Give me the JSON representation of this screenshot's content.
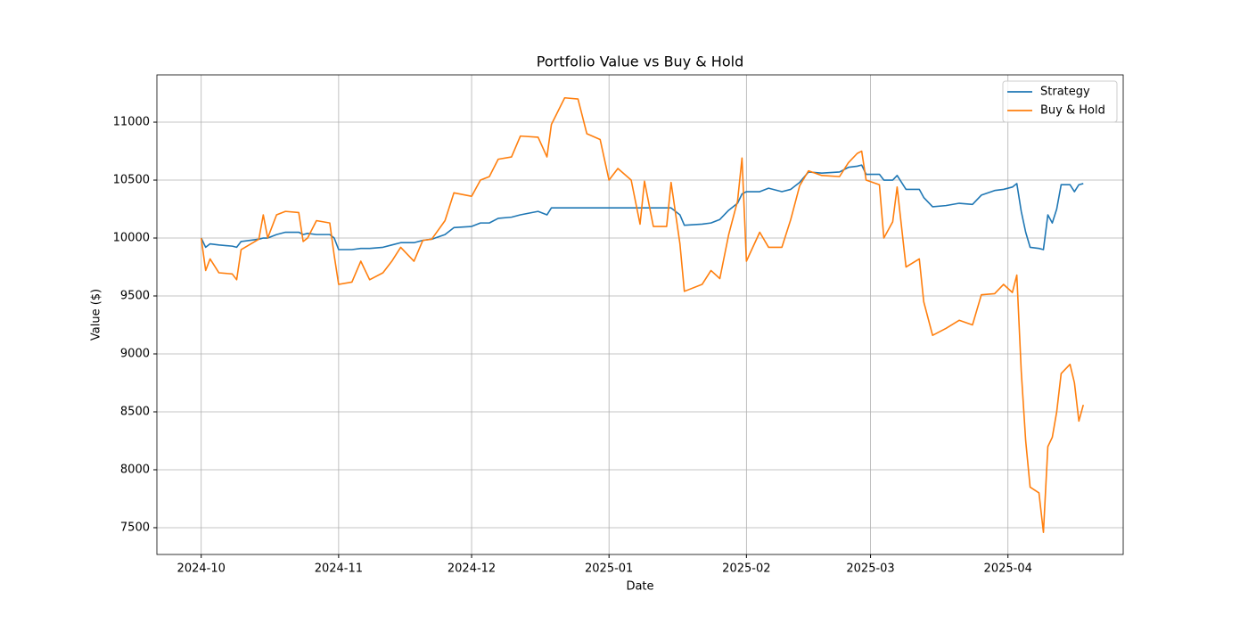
{
  "chart_data": {
    "type": "line",
    "title": "Portfolio Value vs Buy & Hold",
    "x_label": "Date",
    "y_label": "Value ($)",
    "x": [
      "2024-10-01",
      "2024-10-02",
      "2024-10-03",
      "2024-10-05",
      "2024-10-08",
      "2024-10-09",
      "2024-10-10",
      "2024-10-14",
      "2024-10-15",
      "2024-10-16",
      "2024-10-18",
      "2024-10-20",
      "2024-10-23",
      "2024-10-24",
      "2024-10-25",
      "2024-10-27",
      "2024-10-30",
      "2024-10-31",
      "2024-11-01",
      "2024-11-04",
      "2024-11-06",
      "2024-11-08",
      "2024-11-11",
      "2024-11-13",
      "2024-11-15",
      "2024-11-18",
      "2024-11-20",
      "2024-11-22",
      "2024-11-25",
      "2024-11-27",
      "2024-12-01",
      "2024-12-03",
      "2024-12-05",
      "2024-12-07",
      "2024-12-10",
      "2024-12-12",
      "2024-12-16",
      "2024-12-18",
      "2024-12-19",
      "2024-12-22",
      "2024-12-25",
      "2024-12-27",
      "2024-12-30",
      "2025-01-01",
      "2025-01-03",
      "2025-01-06",
      "2025-01-08",
      "2025-01-09",
      "2025-01-11",
      "2025-01-14",
      "2025-01-15",
      "2025-01-17",
      "2025-01-18",
      "2025-01-22",
      "2025-01-24",
      "2025-01-26",
      "2025-01-28",
      "2025-01-30",
      "2025-01-31",
      "2025-02-01",
      "2025-02-04",
      "2025-02-06",
      "2025-02-09",
      "2025-02-11",
      "2025-02-13",
      "2025-02-15",
      "2025-02-18",
      "2025-02-22",
      "2025-02-24",
      "2025-02-26",
      "2025-02-27",
      "2025-02-28",
      "2025-03-03",
      "2025-03-04",
      "2025-03-06",
      "2025-03-07",
      "2025-03-09",
      "2025-03-12",
      "2025-03-13",
      "2025-03-15",
      "2025-03-18",
      "2025-03-21",
      "2025-03-24",
      "2025-03-26",
      "2025-03-29",
      "2025-03-31",
      "2025-04-02",
      "2025-04-03",
      "2025-04-04",
      "2025-04-05",
      "2025-04-06",
      "2025-04-08",
      "2025-04-09",
      "2025-04-10",
      "2025-04-11",
      "2025-04-12",
      "2025-04-13",
      "2025-04-15",
      "2025-04-16",
      "2025-04-17",
      "2025-04-18"
    ],
    "series": [
      {
        "name": "Strategy",
        "color": "#1f77b4",
        "values": [
          10000,
          9920,
          9950,
          9940,
          9930,
          9920,
          9970,
          9990,
          10000,
          10000,
          10030,
          10050,
          10050,
          10030,
          10040,
          10030,
          10030,
          10000,
          9900,
          9900,
          9910,
          9910,
          9920,
          9940,
          9960,
          9960,
          9980,
          9990,
          10030,
          10090,
          10100,
          10130,
          10130,
          10170,
          10180,
          10200,
          10230,
          10200,
          10260,
          10260,
          10260,
          10260,
          10260,
          10260,
          10260,
          10260,
          10260,
          10260,
          10260,
          10260,
          10260,
          10200,
          10110,
          10120,
          10130,
          10160,
          10240,
          10300,
          10380,
          10400,
          10400,
          10430,
          10400,
          10420,
          10480,
          10570,
          10560,
          10570,
          10610,
          10620,
          10630,
          10550,
          10550,
          10500,
          10500,
          10540,
          10420,
          10420,
          10350,
          10270,
          10280,
          10300,
          10290,
          10370,
          10410,
          10420,
          10440,
          10470,
          10230,
          10050,
          9920,
          9910,
          9900,
          10200,
          10130,
          10250,
          10460,
          10460,
          10400,
          10460,
          10470
        ]
      },
      {
        "name": "Buy & Hold",
        "color": "#ff7f0e",
        "values": [
          10000,
          9720,
          9820,
          9700,
          9690,
          9640,
          9900,
          9990,
          10200,
          10000,
          10200,
          10230,
          10220,
          9970,
          10000,
          10150,
          10130,
          9850,
          9600,
          9620,
          9800,
          9640,
          9700,
          9800,
          9920,
          9800,
          9980,
          9990,
          10150,
          10390,
          10360,
          10500,
          10530,
          10680,
          10700,
          10880,
          10870,
          10700,
          10980,
          11210,
          11200,
          10900,
          10850,
          10500,
          10600,
          10500,
          10120,
          10490,
          10100,
          10100,
          10480,
          9950,
          9540,
          9600,
          9720,
          9650,
          10030,
          10320,
          10690,
          9800,
          10050,
          9920,
          9920,
          10160,
          10450,
          10580,
          10540,
          10530,
          10650,
          10730,
          10750,
          10500,
          10460,
          10000,
          10140,
          10440,
          9750,
          9820,
          9450,
          9160,
          9220,
          9290,
          9250,
          9510,
          9520,
          9600,
          9530,
          9680,
          8850,
          8250,
          7850,
          7800,
          7460,
          8200,
          8280,
          8500,
          8830,
          8910,
          8750,
          8420,
          8560
        ]
      }
    ],
    "xlim": [
      "2024-09-21",
      "2025-04-27"
    ],
    "xticks": [
      {
        "value": "2024-10-01",
        "label": "2024-10"
      },
      {
        "value": "2024-11-01",
        "label": "2024-11"
      },
      {
        "value": "2024-12-01",
        "label": "2024-12"
      },
      {
        "value": "2025-01-01",
        "label": "2025-01"
      },
      {
        "value": "2025-02-01",
        "label": "2025-02"
      },
      {
        "value": "2025-03-01",
        "label": "2025-03"
      },
      {
        "value": "2025-04-01",
        "label": "2025-04"
      }
    ],
    "ylim": [
      7269,
      11408
    ],
    "yticks": [
      7500,
      8000,
      8500,
      9000,
      9500,
      10000,
      10500,
      11000
    ],
    "grid": true,
    "legend": "upper right"
  }
}
